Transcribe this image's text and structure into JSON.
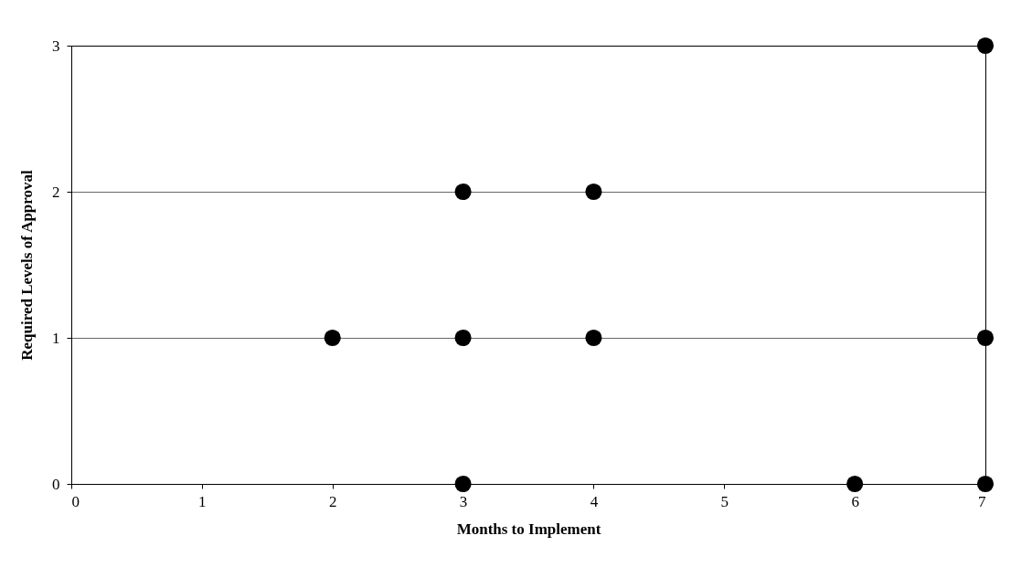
{
  "chart_data": {
    "type": "scatter",
    "xlabel": "Months to Implement",
    "ylabel": "Required Levels of Approval",
    "x": [
      2,
      3,
      3,
      3,
      4,
      4,
      6,
      7,
      7,
      7
    ],
    "values": [
      1,
      2,
      1,
      0,
      2,
      1,
      0,
      3,
      1,
      0
    ],
    "color": "#000000",
    "marker": "circle",
    "xlim": [
      0,
      7
    ],
    "xticks": [
      0,
      1,
      2,
      3,
      4,
      5,
      6,
      7
    ],
    "ylim": [
      0,
      3
    ],
    "yticks": [
      0,
      1,
      2,
      3
    ],
    "grid": "y"
  }
}
